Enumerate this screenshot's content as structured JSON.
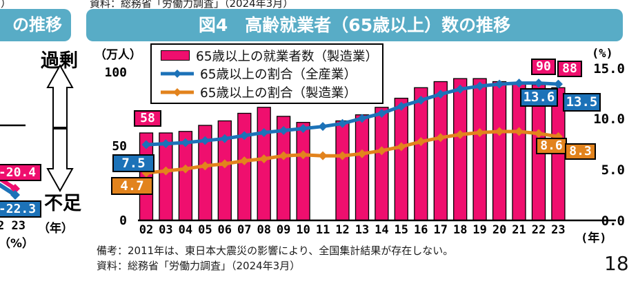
{
  "page": {
    "top_source_note": "資料：総務省「労働力調査」（2024年3月）",
    "top_left_fragment_char": "）",
    "page_number": "18"
  },
  "left_figure_fragment": {
    "title_fragment": "の推移",
    "surplus_label": "過剰",
    "shortage_label": "不足",
    "pink_value_label": "-20.4",
    "blue_value_label": "-22.3",
    "x_tick_fragment": "2 23",
    "year_unit": "（年）",
    "percent_unit": "（%）"
  },
  "figure": {
    "title": "図4　高齢就業者（65歳以上）数の推移",
    "left_axis_unit": "（万人）",
    "right_axis_unit": "(%)",
    "x_axis_unit": "(年)",
    "left_axis_labels": [
      "100",
      "50",
      "0"
    ],
    "right_axis_labels": [
      "15.0",
      "10.0",
      "5.0",
      "0.0"
    ],
    "notes": [
      "備考：2011年は、東日本大震災の影響により、全国集計結果が存在しない。",
      "資料：総務省「労働力調査」（2024年3月）"
    ]
  },
  "chart_data": {
    "type": "combo_bar_line",
    "title": "図4　高齢就業者（65歳以上）数の推移",
    "categories": [
      "02",
      "03",
      "04",
      "05",
      "06",
      "07",
      "08",
      "09",
      "10",
      "11",
      "12",
      "13",
      "14",
      "15",
      "16",
      "17",
      "18",
      "19",
      "20",
      "21",
      "22",
      "23"
    ],
    "x_unit": "年 (2002-2023)",
    "grid": false,
    "legend_position": "top-left-inside",
    "left_axis": {
      "unit": "万人",
      "range": [
        0,
        100
      ],
      "ticks": [
        0,
        50,
        100
      ]
    },
    "right_axis": {
      "unit": "%",
      "range": [
        0,
        15
      ],
      "ticks": [
        0,
        5.0,
        10.0,
        15.0
      ]
    },
    "missing_data_note": "2011: no bar (national aggregate not available due to Great East Japan Earthquake)",
    "series": [
      {
        "name": "65歳以上の就業者数（製造業）",
        "type": "bar",
        "axis": "left",
        "color": "#EF0F6E",
        "values": [
          58,
          58,
          59,
          63,
          66,
          71,
          75,
          69,
          65,
          null,
          66,
          70,
          75,
          81,
          88,
          92,
          94,
          94,
          92,
          91,
          90,
          88
        ]
      },
      {
        "name": "65歳以上の割合（全産業）",
        "type": "line",
        "axis": "right",
        "color": "#1C72B8",
        "values": [
          7.5,
          7.6,
          7.7,
          7.9,
          8.1,
          8.4,
          8.7,
          8.9,
          9.1,
          9.3,
          9.6,
          10.1,
          10.6,
          11.3,
          11.9,
          12.5,
          13.0,
          13.3,
          13.5,
          13.6,
          13.6,
          13.5
        ]
      },
      {
        "name": "65歳以上の割合（製造業）",
        "type": "line",
        "axis": "right",
        "color": "#E2831D",
        "values": [
          4.7,
          4.9,
          5.1,
          5.4,
          5.6,
          5.9,
          6.1,
          6.4,
          6.5,
          6.4,
          6.4,
          6.6,
          6.9,
          7.3,
          7.8,
          8.2,
          8.5,
          8.7,
          8.8,
          8.8,
          8.6,
          8.3
        ]
      }
    ],
    "callouts": {
      "bar": {
        "02": "58",
        "22": "90",
        "23": "88"
      },
      "all_industry": {
        "02": "7.5",
        "22": "13.6",
        "23": "13.5"
      },
      "manufacturing": {
        "02": "4.7",
        "22": "8.6",
        "23": "8.3"
      }
    }
  }
}
